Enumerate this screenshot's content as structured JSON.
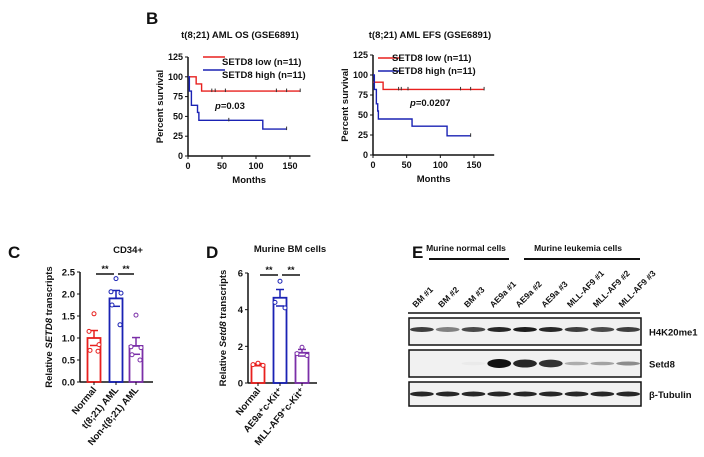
{
  "panels": {
    "B": "B",
    "C": "C",
    "D": "D",
    "E": "E"
  },
  "chart_data": [
    {
      "type": "line",
      "id": "os",
      "title": "t(8;21) AML OS (GSE6891)",
      "xlabel": "Months",
      "ylabel": "Percent survival",
      "xlim": [
        0,
        180
      ],
      "ylim": [
        0,
        125
      ],
      "xticks": [
        0,
        50,
        100,
        150
      ],
      "yticks": [
        0,
        25,
        50,
        75,
        100,
        125
      ],
      "p_label": "p",
      "p_value": "=0.03",
      "series": [
        {
          "name": "SETD8 low (n=11)",
          "color": "#e8201e",
          "steps": [
            [
              0,
              100
            ],
            [
              12,
              91
            ],
            [
              20,
              82
            ],
            [
              165,
              82
            ]
          ],
          "censor": [
            35,
            40,
            55,
            130,
            145,
            165
          ]
        },
        {
          "name": "SETD8 high (n=11)",
          "color": "#1a22b4",
          "steps": [
            [
              0,
              100
            ],
            [
              2,
              82
            ],
            [
              5,
              64
            ],
            [
              14,
              55
            ],
            [
              16,
              45
            ],
            [
              110,
              34
            ],
            [
              145,
              34
            ]
          ],
          "censor": [
            60,
            145
          ]
        }
      ]
    },
    {
      "type": "line",
      "id": "efs",
      "title": "t(8;21) AML EFS (GSE6891)",
      "xlabel": "Months",
      "ylabel": "Percent survival",
      "xlim": [
        0,
        180
      ],
      "ylim": [
        0,
        125
      ],
      "xticks": [
        0,
        50,
        100,
        150
      ],
      "yticks": [
        0,
        25,
        50,
        75,
        100,
        125
      ],
      "p_label": "p",
      "p_value": "=0.0207",
      "series": [
        {
          "name": "SETD8 low (n=11)",
          "color": "#e8201e",
          "steps": [
            [
              0,
              91
            ],
            [
              15,
              82
            ],
            [
              165,
              82
            ]
          ],
          "censor": [
            38,
            42,
            52,
            130,
            145,
            165
          ]
        },
        {
          "name": "SETD8 high (n=11)",
          "color": "#1a22b4",
          "steps": [
            [
              0,
              100
            ],
            [
              2,
              82
            ],
            [
              5,
              64
            ],
            [
              7,
              55
            ],
            [
              8,
              45
            ],
            [
              58,
              36
            ],
            [
              110,
              24
            ],
            [
              145,
              24
            ]
          ],
          "censor": [
            145
          ]
        }
      ]
    },
    {
      "type": "bar",
      "id": "cd34",
      "title": "CD34+",
      "ylabel_pre": "Relative ",
      "ylabel_italic": "SETD8",
      "ylabel_post": " transcripts",
      "ylim": [
        0,
        2.5
      ],
      "yticks": [
        "0.0",
        "0.5",
        "1.0",
        "1.5",
        "2.0",
        "2.5"
      ],
      "categories": [
        "Normal",
        "t(8;21) AML",
        "Non-t(8;21) AML"
      ],
      "values": [
        1.0,
        1.9,
        0.82
      ],
      "errors": [
        0.17,
        0.18,
        0.19
      ],
      "colors": [
        "#e8201e",
        "#1a22b4",
        "#7b2fa8"
      ],
      "points": [
        [
          1.55,
          1.15,
          0.85,
          0.72,
          0.7
        ],
        [
          2.35,
          2.05,
          2.02,
          1.75,
          1.3
        ],
        [
          1.52,
          0.8,
          0.78,
          0.62,
          0.5
        ]
      ],
      "significance": [
        "**",
        "**"
      ]
    },
    {
      "type": "bar",
      "id": "bm",
      "title": "Murine BM cells",
      "ylabel_pre": "Relative ",
      "ylabel_italic": "Setd8",
      "ylabel_post": " transcripts",
      "ylim": [
        0,
        6
      ],
      "yticks": [
        "0",
        "2",
        "4",
        "6"
      ],
      "categories": [
        "Normal",
        "AE9a⁺c-Kit⁺",
        "MLL-AF9⁺c-Kit⁺"
      ],
      "values": [
        1.0,
        4.65,
        1.65
      ],
      "errors": [
        0.06,
        0.45,
        0.18
      ],
      "colors": [
        "#e8201e",
        "#1a22b4",
        "#7b2fa8"
      ],
      "points": [
        [
          1.08,
          1.0,
          0.96
        ],
        [
          5.55,
          4.4,
          4.1
        ],
        [
          1.95,
          1.6,
          1.5
        ]
      ],
      "significance": [
        "**",
        "**"
      ]
    }
  ],
  "blot": {
    "group_labels": [
      "Murine normal cells",
      "Murine leukemia cells"
    ],
    "lanes": [
      "BM #1",
      "BM #2",
      "BM #3",
      "AE9a #1",
      "AE9a #2",
      "AE9a #3",
      "MLL-AF9 #1",
      "MLL-AF9 #2",
      "MLL-AF9 #3"
    ],
    "rows": [
      {
        "label": "H4K20me1",
        "intensity": [
          0.8,
          0.5,
          0.75,
          0.9,
          0.95,
          0.9,
          0.8,
          0.75,
          0.8
        ]
      },
      {
        "label": "Setd8",
        "intensity": [
          0,
          0,
          0.03,
          1,
          0.9,
          0.85,
          0.3,
          0.35,
          0.45
        ]
      },
      {
        "label": "β-Tubulin",
        "intensity": [
          0.9,
          0.9,
          0.9,
          0.9,
          0.9,
          0.9,
          0.9,
          0.9,
          0.9
        ]
      }
    ]
  }
}
